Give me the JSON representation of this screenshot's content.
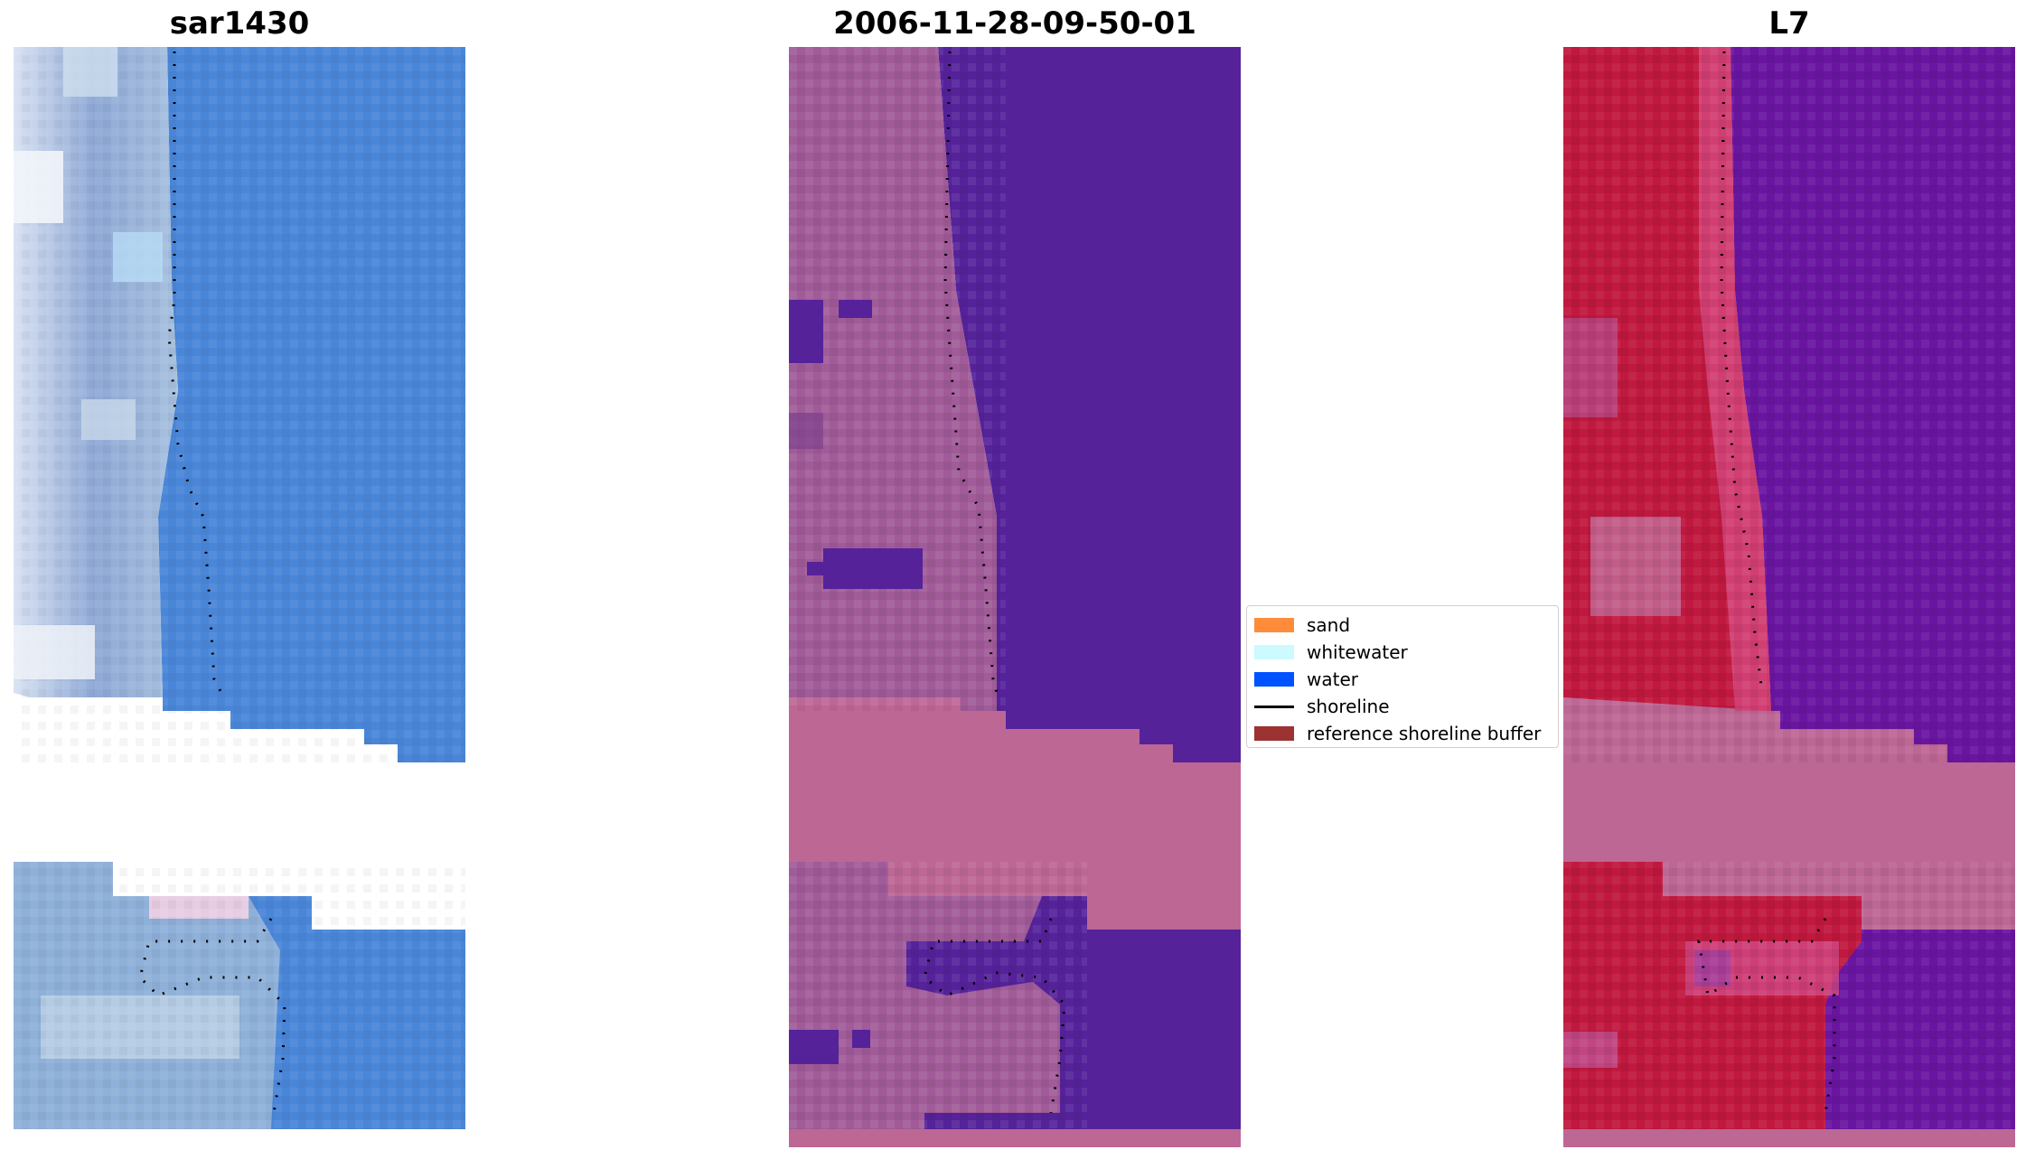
{
  "panels": [
    {
      "title": "sar1430",
      "style": "rgb"
    },
    {
      "title": "2006-11-28-09-50-01",
      "style": "classified"
    },
    {
      "title": "L7",
      "style": "index"
    }
  ],
  "legend": {
    "items": [
      {
        "label": "sand",
        "kind": "patch",
        "color": "#ff8c3a"
      },
      {
        "label": "whitewater",
        "kind": "patch",
        "color": "#ccfaff"
      },
      {
        "label": "water",
        "kind": "patch",
        "color": "#0052ff"
      },
      {
        "label": "shoreline",
        "kind": "line",
        "color": "#000000"
      },
      {
        "label": "reference shoreline buffer",
        "kind": "patch",
        "color": "#9c3232"
      }
    ]
  },
  "colors": {
    "rgb_water": "#4a86d8",
    "rgb_land": "#9fb8dc",
    "class_water": "#55229a",
    "class_land": "#a05b98",
    "buffer": "#bd6795",
    "index_water": "#6a15a0",
    "index_land": "#c0183f"
  }
}
